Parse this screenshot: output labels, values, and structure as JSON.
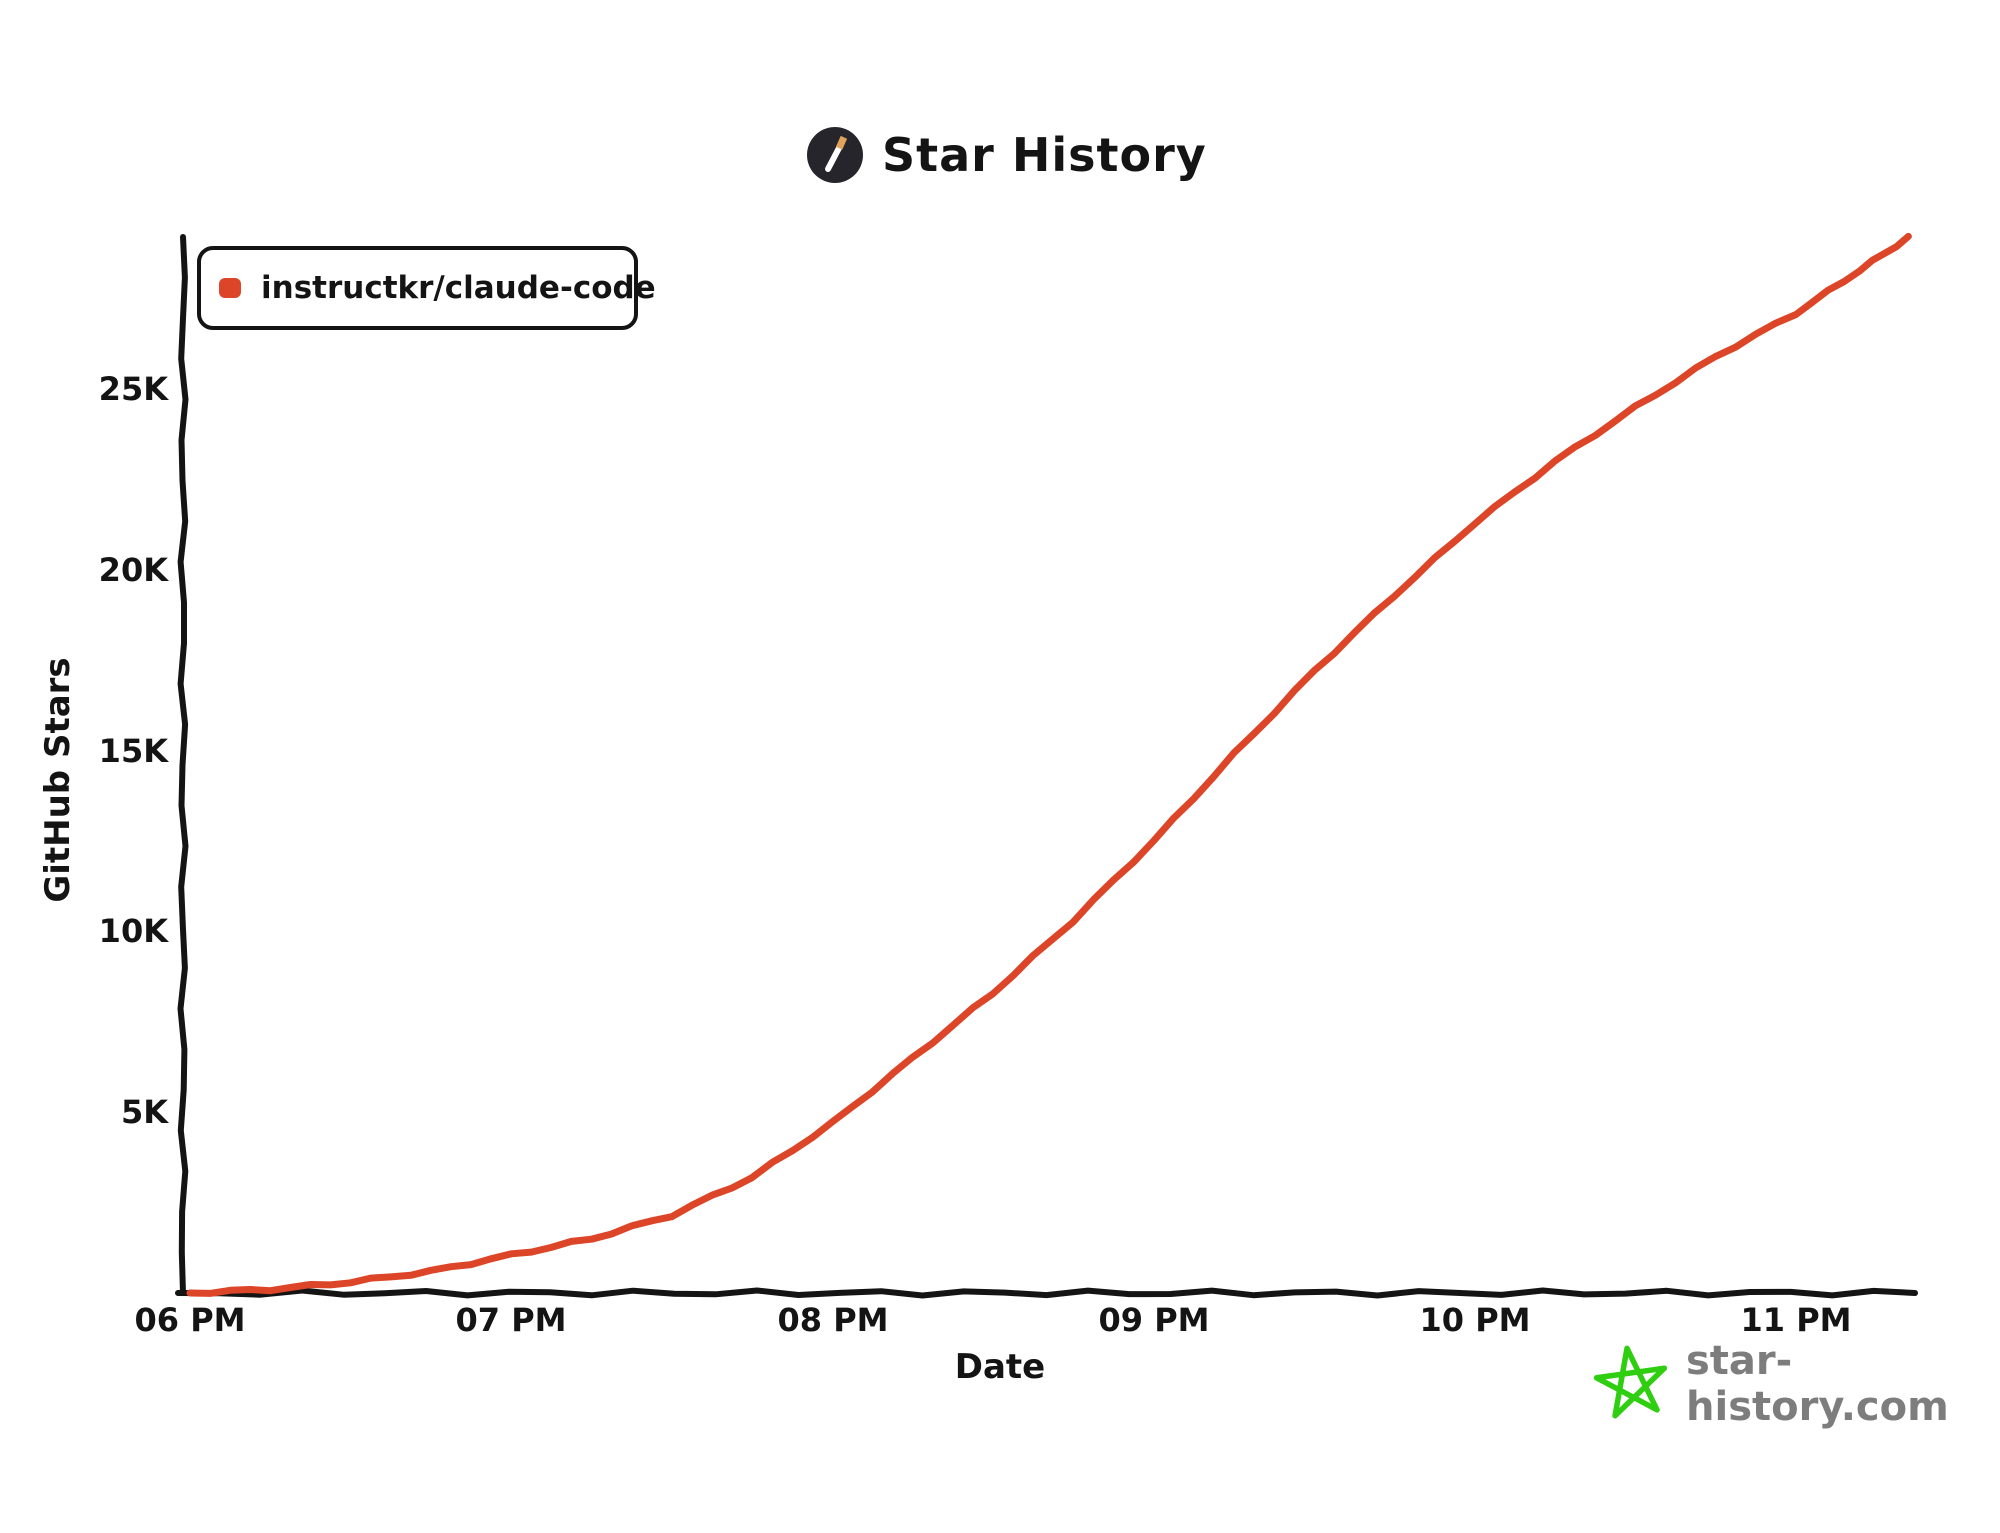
{
  "page": {
    "title": "Star History",
    "watermark": "star-history.com"
  },
  "legend": {
    "series_label": "instructkr/claude-code"
  },
  "axes": {
    "y_label": "GitHub Stars",
    "x_label": "Date",
    "y_ticks": [
      "25K",
      "20K",
      "15K",
      "10K",
      "5K"
    ],
    "x_ticks": [
      "06 PM",
      "07 PM",
      "08 PM",
      "09 PM",
      "10 PM",
      "11 PM"
    ]
  },
  "colors": {
    "line": "#DD4528",
    "axis": "#141414",
    "legend_marker": "#DD4528",
    "icon_bg": "#26252C",
    "icon_wand": "#FFFFFF",
    "icon_wand_tip": "#E0A35C",
    "watermark_star": "#2FCE10",
    "watermark_text": "#7D7D7D"
  },
  "chart_data": {
    "type": "line",
    "title": "Star History",
    "xlabel": "Date",
    "ylabel": "GitHub Stars",
    "x_tick_labels": [
      "06 PM",
      "07 PM",
      "08 PM",
      "09 PM",
      "10 PM",
      "11 PM"
    ],
    "y_tick_labels": [
      "5K",
      "10K",
      "15K",
      "20K",
      "25K"
    ],
    "xlim_hours": [
      18.0,
      23.4
    ],
    "ylim": [
      0,
      29600
    ],
    "grid": false,
    "legend_position": "top-left",
    "series": [
      {
        "name": "instructkr/claude-code",
        "color": "#DD4528",
        "x_hours": [
          18.0,
          18.25,
          18.5,
          18.75,
          19.0,
          19.25,
          19.5,
          19.75,
          20.0,
          20.25,
          20.5,
          20.75,
          21.0,
          21.25,
          21.5,
          21.75,
          22.0,
          22.25,
          22.5,
          22.75,
          23.0,
          23.2,
          23.35
        ],
        "values": [
          0,
          100,
          300,
          600,
          1050,
          1500,
          2150,
          3200,
          4700,
          6500,
          8300,
          10300,
          12500,
          14900,
          17200,
          19300,
          21300,
          23000,
          24500,
          25900,
          27100,
          28300,
          29200
        ]
      }
    ]
  }
}
